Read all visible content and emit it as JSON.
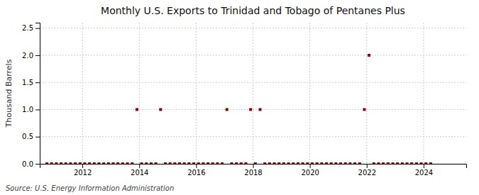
{
  "chart_data": {
    "type": "scatter",
    "title": "Monthly U.S. Exports to Trinidad and Tobago of Pentanes Plus",
    "y_label": "Thousand Barrels",
    "source": "Source: U.S. Energy Information Administration",
    "x": [
      2010.75,
      2010.917,
      2011.083,
      2011.25,
      2011.417,
      2011.583,
      2011.75,
      2011.917,
      2012.083,
      2012.25,
      2012.417,
      2012.583,
      2012.75,
      2012.917,
      2013.083,
      2013.25,
      2013.417,
      2013.583,
      2013.75,
      2013.917,
      2014.083,
      2014.25,
      2014.417,
      2014.583,
      2014.75,
      2014.917,
      2015.083,
      2015.25,
      2015.417,
      2015.583,
      2015.75,
      2015.917,
      2016.083,
      2016.25,
      2016.417,
      2016.583,
      2016.75,
      2016.917,
      2017.083,
      2017.25,
      2017.417,
      2017.583,
      2017.75,
      2017.917,
      2018.083,
      2018.25,
      2018.417,
      2018.583,
      2018.75,
      2018.917,
      2019.083,
      2019.25,
      2019.417,
      2019.583,
      2019.75,
      2019.917,
      2020.083,
      2020.25,
      2020.417,
      2020.583,
      2020.75,
      2020.917,
      2021.083,
      2021.25,
      2021.417,
      2021.583,
      2021.75,
      2021.917,
      2022.083,
      2022.25,
      2022.417,
      2022.583,
      2022.75,
      2022.917,
      2023.083,
      2023.25,
      2023.417,
      2023.583,
      2023.75,
      2023.917,
      2024.083,
      2024.25
    ],
    "values": [
      0,
      0,
      0,
      0,
      0,
      0,
      0,
      0,
      0,
      0,
      0,
      0,
      0,
      0,
      0,
      0,
      0,
      0,
      0,
      1,
      0,
      0,
      0,
      0,
      1,
      0,
      0,
      0,
      0,
      0,
      0,
      0,
      0,
      0,
      0,
      0,
      0,
      0,
      1,
      0,
      0,
      0,
      0,
      1,
      0,
      1,
      0,
      0,
      0,
      0,
      0,
      0,
      0,
      0,
      0,
      0,
      0,
      0,
      0,
      0,
      0,
      0,
      0,
      0,
      0,
      0,
      0,
      1,
      2,
      0,
      0,
      0,
      0,
      0,
      0,
      0,
      0,
      0,
      0,
      0,
      0,
      0
    ],
    "color": "#8b0000",
    "marker": "square",
    "xlim": [
      2010.5,
      2025.5
    ],
    "ylim": [
      0,
      2.6
    ],
    "xticks": [
      2012,
      2014,
      2016,
      2018,
      2020,
      2022,
      2024
    ],
    "yticks": [
      {
        "value": 0.0,
        "label": "0.0"
      },
      {
        "value": 0.5,
        "label": "0.5"
      },
      {
        "value": 1.0,
        "label": "1.0"
      },
      {
        "value": 1.5,
        "label": "1.5"
      },
      {
        "value": 2.0,
        "label": "2.0"
      },
      {
        "value": 2.5,
        "label": "2.5"
      }
    ],
    "grid": true
  }
}
